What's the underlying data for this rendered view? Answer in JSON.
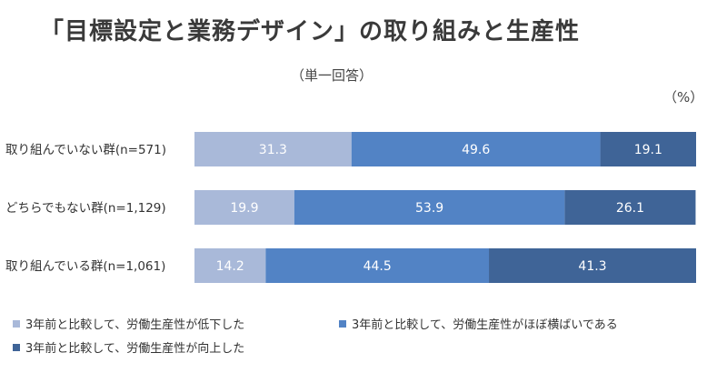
{
  "title": "「目標設定と業務デザイン」の取り組みと生産性",
  "subtitle": "（単一回答）",
  "unit": "（%）",
  "chart_data": {
    "type": "bar",
    "orientation": "horizontal",
    "stacked": true,
    "categories": [
      "取り組んでいない群(n=571)",
      "どちらでもない群(n=1,129)",
      "取り組んでいる群(n=1,061)"
    ],
    "series": [
      {
        "name": "3年前と比較して、労働生産性が低下した",
        "color": "#a9b9d9",
        "values": [
          31.3,
          19.9,
          14.2
        ]
      },
      {
        "name": "3年前と比較して、労働生産性がほぼ横ばいである",
        "color": "#5283c5",
        "values": [
          49.6,
          53.9,
          44.5
        ]
      },
      {
        "name": "3年前と比較して、労働生産性が向上した",
        "color": "#3f6497",
        "values": [
          19.1,
          26.1,
          41.3
        ]
      }
    ],
    "value_labels": [
      [
        "31.3",
        "49.6",
        "19.1"
      ],
      [
        "19.9",
        "53.9",
        "26.1"
      ],
      [
        "14.2",
        "44.5",
        "41.3"
      ]
    ],
    "xlim": [
      0,
      100
    ],
    "grid": false,
    "legend_position": "bottom"
  }
}
